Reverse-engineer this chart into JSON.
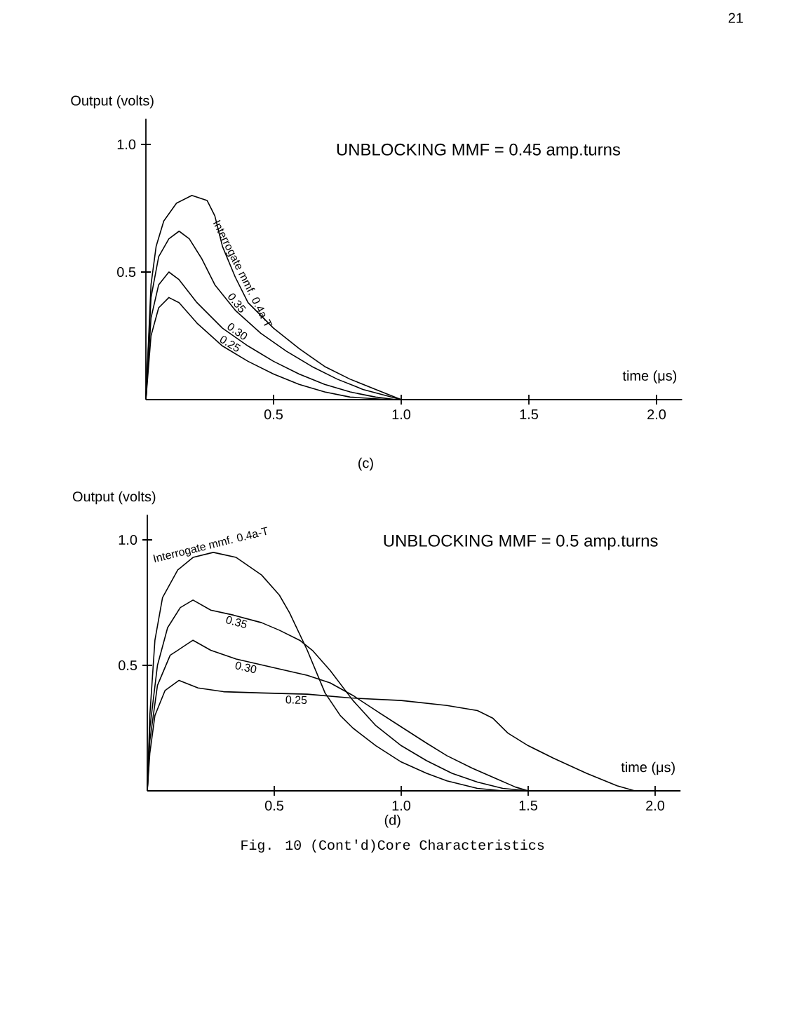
{
  "chart_data": [
    {
      "type": "line",
      "title": "UNBLOCKING MMF = 0.45 amp.turns",
      "xlabel": "time (μs)",
      "ylabel": "Output (volts)",
      "annotations": [
        "(c)",
        "21"
      ],
      "xlim": [
        0,
        2.1
      ],
      "ylim": [
        0,
        1.1
      ],
      "xticks": [
        {
          "value": 0.5,
          "label": "0.5"
        },
        {
          "value": 1,
          "label": "1.0"
        },
        {
          "value": 1.5,
          "label": "1.5"
        },
        {
          "value": 2,
          "label": "2.0"
        }
      ],
      "yticks": [
        0.5,
        {
          "value": 1,
          "label": "1.0"
        }
      ],
      "series": [
        {
          "name": "Interrogate mmf. 0.4a-T",
          "color": "#000000",
          "x": [
            0,
            0.02,
            0.04,
            0.07,
            0.12,
            0.18,
            0.24,
            0.27,
            0.3,
            0.35,
            0.4,
            0.5,
            0.6,
            0.7,
            0.8,
            0.9,
            1.0
          ],
          "values": [
            0,
            0.45,
            0.6,
            0.7,
            0.77,
            0.8,
            0.78,
            0.72,
            0.6,
            0.48,
            0.38,
            0.28,
            0.2,
            0.13,
            0.08,
            0.04,
            0
          ]
        },
        {
          "name": "0.35",
          "color": "#000000",
          "x": [
            0,
            0.02,
            0.05,
            0.09,
            0.13,
            0.17,
            0.22,
            0.27,
            0.35,
            0.45,
            0.55,
            0.65,
            0.75,
            0.85,
            1.0
          ],
          "values": [
            0,
            0.4,
            0.56,
            0.63,
            0.66,
            0.63,
            0.55,
            0.45,
            0.35,
            0.26,
            0.19,
            0.13,
            0.08,
            0.04,
            0
          ]
        },
        {
          "name": "0.30",
          "color": "#000000",
          "x": [
            0,
            0.02,
            0.05,
            0.09,
            0.13,
            0.2,
            0.3,
            0.4,
            0.5,
            0.6,
            0.7,
            0.8,
            0.9,
            0.98
          ],
          "values": [
            0,
            0.32,
            0.45,
            0.5,
            0.47,
            0.38,
            0.28,
            0.21,
            0.15,
            0.1,
            0.06,
            0.03,
            0.01,
            0
          ]
        },
        {
          "name": "0.25",
          "color": "#000000",
          "x": [
            0,
            0.02,
            0.05,
            0.09,
            0.13,
            0.2,
            0.3,
            0.4,
            0.5,
            0.6,
            0.7,
            0.8,
            0.95
          ],
          "values": [
            0,
            0.25,
            0.36,
            0.4,
            0.38,
            0.3,
            0.21,
            0.15,
            0.1,
            0.06,
            0.03,
            0.01,
            0
          ]
        }
      ]
    },
    {
      "type": "line",
      "title": "UNBLOCKING MMF = 0.5 amp.turns",
      "xlabel": "time (μs)",
      "ylabel": "Output (volts)",
      "annotations": [
        "(d)",
        "Fig. 10 (Cont'd)Core Characteristics"
      ],
      "xlim": [
        0,
        2.1
      ],
      "ylim": [
        0,
        1.1
      ],
      "xticks": [
        {
          "value": 0.5,
          "label": "0.5"
        },
        {
          "value": 1,
          "label": "1.0"
        },
        {
          "value": 1.5,
          "label": "1.5"
        },
        {
          "value": 2,
          "label": "2.0"
        }
      ],
      "yticks": [
        0.5,
        {
          "value": 1,
          "label": "1.0"
        }
      ],
      "series": [
        {
          "name": "Interrogate mmf. 0.4a-T",
          "color": "#000000",
          "x": [
            0,
            0.01,
            0.03,
            0.06,
            0.12,
            0.18,
            0.26,
            0.35,
            0.45,
            0.52,
            0.56,
            0.63,
            0.7,
            0.76,
            0.81,
            0.9,
            1.0,
            1.1,
            1.18,
            1.3,
            1.4
          ],
          "values": [
            0,
            0.3,
            0.6,
            0.77,
            0.88,
            0.93,
            0.95,
            0.93,
            0.86,
            0.78,
            0.71,
            0.56,
            0.39,
            0.3,
            0.25,
            0.18,
            0.115,
            0.07,
            0.04,
            0.01,
            0
          ]
        },
        {
          "name": "0.35",
          "color": "#000000",
          "x": [
            0,
            0.01,
            0.04,
            0.08,
            0.13,
            0.18,
            0.25,
            0.34,
            0.45,
            0.52,
            0.6,
            0.65,
            0.72,
            0.81,
            0.9,
            1.0,
            1.1,
            1.2,
            1.3,
            1.4,
            1.5
          ],
          "values": [
            0,
            0.25,
            0.5,
            0.65,
            0.73,
            0.76,
            0.72,
            0.7,
            0.67,
            0.64,
            0.6,
            0.56,
            0.48,
            0.36,
            0.26,
            0.18,
            0.12,
            0.07,
            0.035,
            0.01,
            0
          ]
        },
        {
          "name": "0.30",
          "color": "#000000",
          "x": [
            0,
            0.01,
            0.04,
            0.09,
            0.18,
            0.25,
            0.35,
            0.5,
            0.63,
            0.72,
            0.81,
            0.9,
            1.0,
            1.1,
            1.18,
            1.28,
            1.37,
            1.45,
            1.5
          ],
          "values": [
            0,
            0.2,
            0.42,
            0.54,
            0.6,
            0.56,
            0.525,
            0.49,
            0.46,
            0.43,
            0.38,
            0.32,
            0.255,
            0.19,
            0.14,
            0.09,
            0.05,
            0.015,
            0
          ]
        },
        {
          "name": "0.25",
          "color": "#000000",
          "x": [
            0,
            0.01,
            0.03,
            0.07,
            0.125,
            0.2,
            0.3,
            0.45,
            0.63,
            0.8,
            1.0,
            1.18,
            1.3,
            1.36,
            1.42,
            1.5,
            1.6,
            1.73,
            1.85,
            1.92
          ],
          "values": [
            0,
            0.15,
            0.3,
            0.4,
            0.44,
            0.41,
            0.395,
            0.39,
            0.385,
            0.37,
            0.36,
            0.34,
            0.32,
            0.29,
            0.23,
            0.18,
            0.13,
            0.07,
            0.02,
            0
          ]
        }
      ]
    }
  ]
}
